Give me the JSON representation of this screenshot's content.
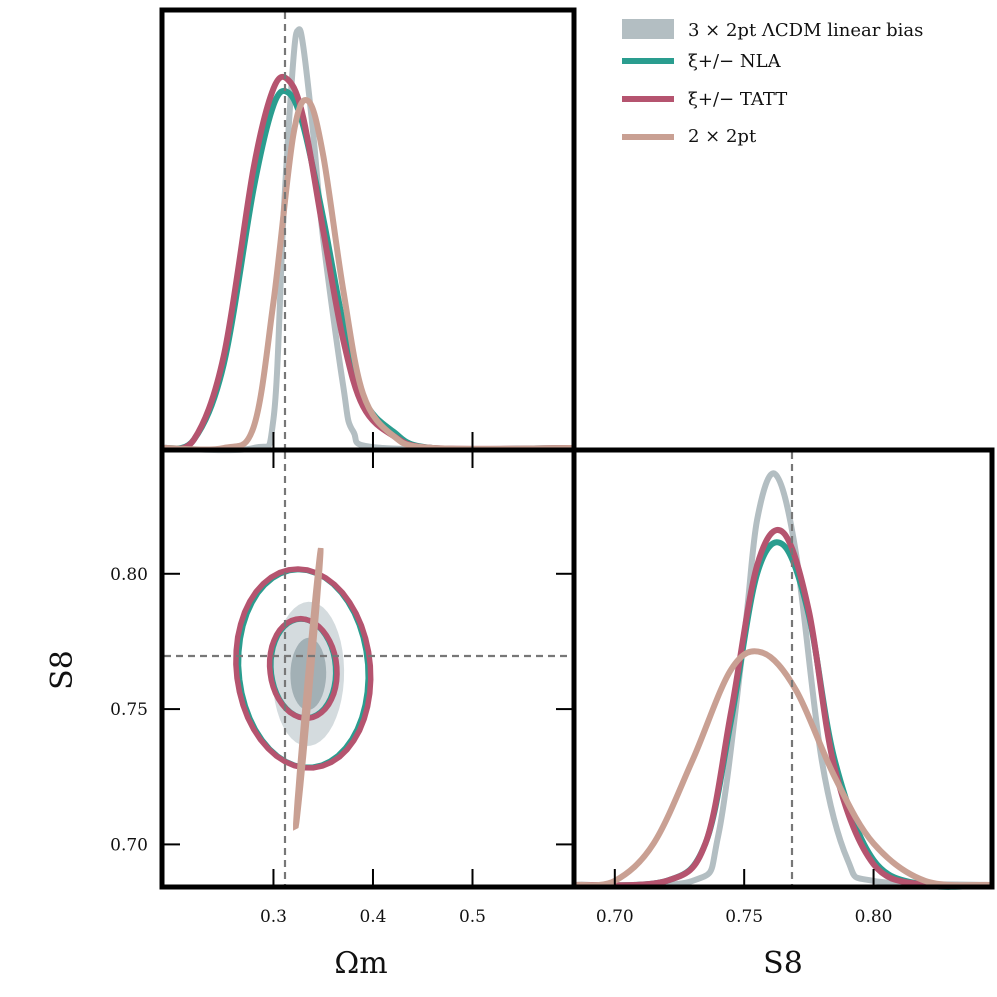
{
  "chart_data": [
    {
      "type": "line",
      "panel": "omega_m-marginal",
      "xlabel": "",
      "ylabel": "",
      "xlim": [
        0.19,
        0.6
      ],
      "ylim": [
        0,
        1.0
      ],
      "reference_line": {
        "x": 0.31
      },
      "series": [
        {
          "name": "3x2pt LCDM linear bias",
          "x": [
            0.19,
            0.28,
            0.3,
            0.31,
            0.32,
            0.325,
            0.33,
            0.34,
            0.35,
            0.37,
            0.38,
            0.41,
            0.6
          ],
          "values": [
            0,
            0.0,
            0.07,
            0.55,
            0.93,
            1.0,
            0.96,
            0.75,
            0.5,
            0.15,
            0.04,
            0.0,
            0
          ]
        },
        {
          "name": "xi+/- NLA",
          "x": [
            0.19,
            0.22,
            0.25,
            0.28,
            0.3,
            0.315,
            0.33,
            0.35,
            0.37,
            0.39,
            0.42,
            0.46,
            0.6
          ],
          "values": [
            0,
            0.02,
            0.2,
            0.62,
            0.82,
            0.85,
            0.77,
            0.55,
            0.3,
            0.12,
            0.04,
            0.0,
            0
          ]
        },
        {
          "name": "xi+/- TATT",
          "x": [
            0.19,
            0.22,
            0.25,
            0.28,
            0.3,
            0.315,
            0.33,
            0.35,
            0.37,
            0.39,
            0.42,
            0.46,
            0.6
          ],
          "values": [
            0,
            0.02,
            0.22,
            0.67,
            0.86,
            0.88,
            0.79,
            0.52,
            0.26,
            0.1,
            0.03,
            0.0,
            0
          ]
        },
        {
          "name": "2x2pt",
          "x": [
            0.19,
            0.25,
            0.28,
            0.3,
            0.32,
            0.335,
            0.35,
            0.37,
            0.39,
            0.42,
            0.46,
            0.6
          ],
          "values": [
            0,
            0.0,
            0.05,
            0.35,
            0.75,
            0.83,
            0.7,
            0.38,
            0.13,
            0.03,
            0.0,
            0
          ]
        }
      ]
    },
    {
      "type": "line",
      "panel": "S8-marginal",
      "xlabel": "S8",
      "ylabel": "",
      "xlim": [
        0.685,
        0.845
      ],
      "ylim": [
        0,
        1.0
      ],
      "xticks": [
        "0.70",
        "0.75",
        "0.80"
      ],
      "reference_line": {
        "x": 0.77
      },
      "series": [
        {
          "name": "3x2pt LCDM linear bias",
          "x": [
            0.685,
            0.73,
            0.74,
            0.75,
            0.755,
            0.762,
            0.77,
            0.78,
            0.79,
            0.8,
            0.845
          ],
          "values": [
            0,
            0.01,
            0.12,
            0.6,
            0.88,
            0.99,
            0.8,
            0.3,
            0.06,
            0.01,
            0
          ]
        },
        {
          "name": "xi+/- NLA",
          "x": [
            0.685,
            0.72,
            0.735,
            0.745,
            0.755,
            0.765,
            0.775,
            0.785,
            0.8,
            0.82,
            0.845
          ],
          "values": [
            0,
            0.01,
            0.1,
            0.4,
            0.75,
            0.82,
            0.65,
            0.3,
            0.06,
            0.0,
            0
          ]
        },
        {
          "name": "xi+/- TATT",
          "x": [
            0.685,
            0.72,
            0.735,
            0.745,
            0.755,
            0.765,
            0.775,
            0.785,
            0.8,
            0.82,
            0.845
          ],
          "values": [
            0,
            0.01,
            0.1,
            0.42,
            0.77,
            0.85,
            0.66,
            0.28,
            0.05,
            0.0,
            0
          ]
        },
        {
          "name": "2x2pt",
          "x": [
            0.685,
            0.7,
            0.715,
            0.73,
            0.745,
            0.757,
            0.77,
            0.785,
            0.8,
            0.82,
            0.845
          ],
          "values": [
            0,
            0.01,
            0.1,
            0.3,
            0.52,
            0.56,
            0.47,
            0.26,
            0.1,
            0.01,
            0
          ]
        }
      ]
    },
    {
      "type": "contour",
      "panel": "omega_m-S8",
      "xlabel": "Ωm",
      "ylabel": "S8",
      "xlim": [
        0.19,
        0.6
      ],
      "ylim": [
        0.685,
        0.845
      ],
      "xticks": [
        "0.3",
        "0.4",
        "0.5"
      ],
      "yticks": [
        "0.70",
        "0.75",
        "0.80"
      ],
      "reference_lines": {
        "x": 0.31,
        "y": 0.77
      },
      "series": [
        {
          "name": "3x2pt LCDM linear bias",
          "center": [
            0.335,
            0.763
          ],
          "sigma_omega_m": 0.025,
          "sigma_S8": 0.013,
          "style": "filled"
        },
        {
          "name": "xi+/- NLA",
          "center": [
            0.33,
            0.765
          ],
          "sigma_omega_m": 0.05,
          "sigma_S8": 0.017,
          "style": "line"
        },
        {
          "name": "xi+/- TATT",
          "center": [
            0.33,
            0.765
          ],
          "sigma_omega_m": 0.052,
          "sigma_S8": 0.017,
          "style": "line"
        },
        {
          "name": "2x2pt",
          "center": [
            0.335,
            0.758
          ],
          "sigma_omega_m": 0.025,
          "sigma_S8": 0.025,
          "style": "line"
        }
      ]
    }
  ],
  "legend": {
    "placement": "top-right",
    "entries": [
      {
        "label": "3 × 2pt ΛCDM linear bias",
        "color": "#b3bec2",
        "kind": "patch"
      },
      {
        "label": "ξ+/− NLA",
        "color": "#2a9d8f",
        "kind": "line"
      },
      {
        "label": "ξ+/− TATT",
        "color": "#b5546f",
        "kind": "line"
      },
      {
        "label": "2 × 2pt",
        "color": "#c9a093",
        "kind": "line"
      }
    ]
  },
  "axes": {
    "omega_m_title": "Ωm",
    "s8_bottom_title": "S8",
    "s8_left_title": "S8"
  },
  "colors": {
    "lcdm_fill_inner": "#a2b0b5",
    "lcdm_fill_outer": "#d4dbde",
    "nla": "#2a9d8f",
    "tatt": "#b5546f",
    "two_pt": "#c9a093",
    "ref_line": "#777777"
  }
}
